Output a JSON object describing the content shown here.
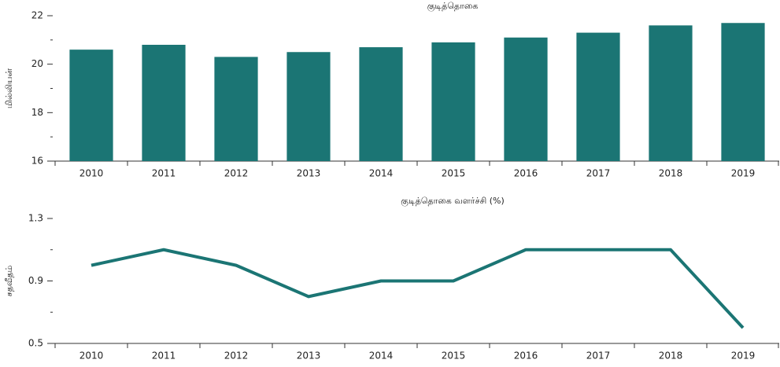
{
  "chart_data": [
    {
      "type": "bar",
      "title": "குடித்தொகை",
      "y_label": "மில்லியன்",
      "categories": [
        "2010",
        "2011",
        "2012",
        "2013",
        "2014",
        "2015",
        "2016",
        "2017",
        "2018",
        "2019"
      ],
      "values": [
        20.6,
        20.8,
        20.3,
        20.5,
        20.7,
        20.9,
        21.1,
        21.3,
        21.6,
        21.7
      ],
      "color": "#1b7574",
      "ylim": [
        16,
        22
      ],
      "yticks": [
        16,
        18,
        20,
        22
      ],
      "yminor": [
        17,
        19,
        21
      ]
    },
    {
      "type": "line",
      "title": "குடித்தொகை வளர்ச்சி (%)",
      "y_label": "சதவீதம்",
      "categories": [
        "2010",
        "2011",
        "2012",
        "2013",
        "2014",
        "2015",
        "2016",
        "2017",
        "2018",
        "2019"
      ],
      "values": [
        1.0,
        1.1,
        1.0,
        0.8,
        0.9,
        0.9,
        1.1,
        1.1,
        1.1,
        0.6
      ],
      "color": "#1b7574",
      "ylim": [
        0.5,
        1.3
      ],
      "yticks": [
        0.5,
        0.9,
        1.3
      ],
      "yminor": [
        0.7,
        1.1
      ]
    }
  ]
}
